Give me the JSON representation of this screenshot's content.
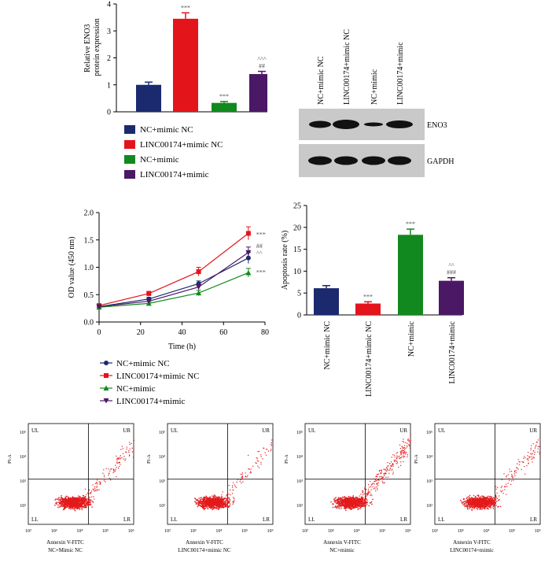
{
  "colors": {
    "navy": "#1b2a6e",
    "red": "#e4141b",
    "green": "#12891e",
    "purple": "#4b1866",
    "dot": "#e31a1c",
    "gel_bg": "#c8c8c8",
    "band": "#111111"
  },
  "chart_data": [
    {
      "type": "bar",
      "ylabel": "Relative ENO3 protein expression",
      "ylim": [
        0,
        4
      ],
      "yticks": [
        "0",
        "1",
        "2",
        "3",
        "4"
      ],
      "categories": [
        "NC+mimic NC",
        "LINC00174+mimic NC",
        "NC+mimic",
        "LINC00174+mimic"
      ],
      "values": [
        1.0,
        3.45,
        0.33,
        1.4
      ],
      "errors": [
        0.1,
        0.22,
        0.05,
        0.1
      ],
      "annotations": [
        "",
        "***",
        "***",
        "^^^|##"
      ],
      "legend": [
        "NC+mimic NC",
        "LINC00174+mimic NC",
        "NC+mimic",
        "LINC00174+mimic"
      ]
    },
    {
      "type": "line",
      "xlabel": "Time (h)",
      "ylabel": "OD value (450 nm)",
      "xlim": [
        0,
        80
      ],
      "ylim": [
        0,
        2.0
      ],
      "xticks": [
        "0",
        "20",
        "40",
        "60",
        "80"
      ],
      "yticks": [
        "0.0",
        "0.5",
        "1.0",
        "1.5",
        "2.0"
      ],
      "x": [
        0,
        24,
        48,
        72
      ],
      "series": [
        {
          "name": "NC+mimic NC",
          "values": [
            0.28,
            0.42,
            0.7,
            1.17
          ],
          "errors": [
            0.02,
            0.03,
            0.05,
            0.1
          ]
        },
        {
          "name": "LINC00174+mimic NC",
          "values": [
            0.3,
            0.52,
            0.92,
            1.62
          ],
          "errors": [
            0.02,
            0.04,
            0.08,
            0.12
          ]
        },
        {
          "name": "NC+mimic",
          "values": [
            0.27,
            0.34,
            0.53,
            0.9
          ],
          "errors": [
            0.02,
            0.03,
            0.05,
            0.08
          ]
        },
        {
          "name": "LINC00174+mimic",
          "values": [
            0.28,
            0.38,
            0.64,
            1.27
          ],
          "errors": [
            0.02,
            0.03,
            0.05,
            0.1
          ]
        }
      ],
      "annotations": [
        "***",
        "##",
        "^^",
        "***"
      ]
    },
    {
      "type": "bar",
      "ylabel": "Apoptosis rate (%)",
      "ylim": [
        0,
        25
      ],
      "yticks": [
        "0",
        "5",
        "10",
        "15",
        "20",
        "25"
      ],
      "categories": [
        "NC+mimic NC",
        "LINC00174+mimic NC",
        "NC+mimic",
        "LINC00174+mimic"
      ],
      "values": [
        6.1,
        2.6,
        18.3,
        7.8
      ],
      "errors": [
        0.6,
        0.4,
        1.3,
        0.7
      ],
      "annotations": [
        "",
        "***",
        "***",
        "^^|###"
      ]
    },
    {
      "type": "scatter",
      "panels": [
        {
          "quadrants": [
            "UL",
            "UR",
            "LL",
            "LR"
          ],
          "xlabel": "Annexin V-FITC",
          "sublabel": "NC+Mimic NC",
          "ylabel": "PI-A"
        },
        {
          "quadrants": [
            "UL",
            "UR",
            "LL",
            "LR"
          ],
          "xlabel": "Annexin V-FITC",
          "sublabel": "LINC00174+mimic NC",
          "ylabel": "PI-A"
        },
        {
          "quadrants": [
            "UL",
            "UR",
            "LL",
            "LR"
          ],
          "xlabel": "Annexin V-FITC",
          "sublabel": "NC+mimic",
          "ylabel": "PI-A"
        },
        {
          "quadrants": [
            "UL",
            "UR",
            "LL",
            "LR"
          ],
          "xlabel": "Annexin V-FITC",
          "sublabel": "LINC00174+mimic",
          "ylabel": "PI-A"
        }
      ],
      "xticks": [
        "10²",
        "10³",
        "10⁴",
        "10⁵",
        "10⁶"
      ],
      "yticks": [
        "10²",
        "10³",
        "10⁴",
        "10⁵"
      ]
    }
  ],
  "western": {
    "lanes": [
      "NC+mimic NC",
      "LINC00174+mimic NC",
      "NC+mimic",
      "LINC00174+mimic"
    ],
    "rows": [
      "ENO3",
      "GAPDH"
    ]
  }
}
